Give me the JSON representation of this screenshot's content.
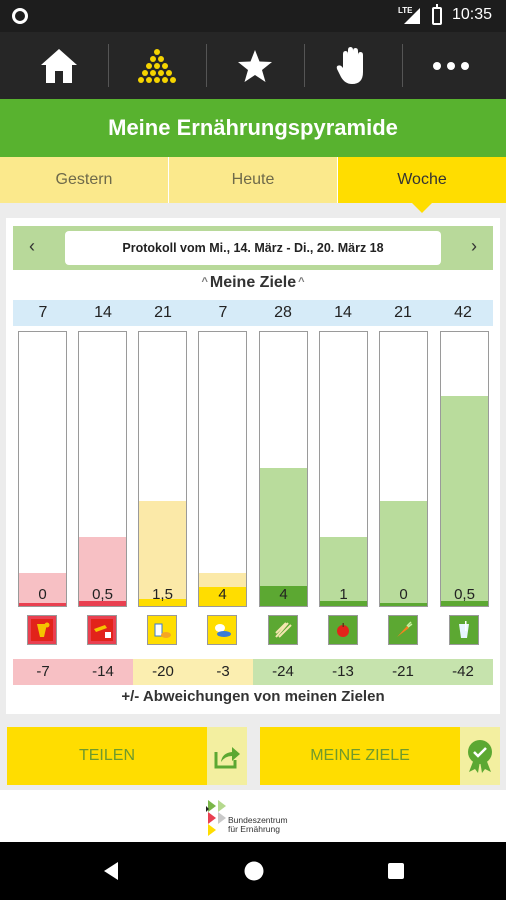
{
  "status_bar": {
    "network": "LTE",
    "time": "10:35"
  },
  "nav": {
    "items": [
      "home-icon",
      "pyramid-icon",
      "star-icon",
      "hand-icon",
      "more-icon"
    ]
  },
  "title": "Meine Ernährungspyramide",
  "tabs": [
    {
      "label": "Gestern",
      "active": false
    },
    {
      "label": "Heute",
      "active": false
    },
    {
      "label": "Woche",
      "active": true
    }
  ],
  "protocol": {
    "text": "Protokoll vom Mi., 14. März - Di., 20. März 18"
  },
  "goals": {
    "heading": "Meine Ziele"
  },
  "chart_data": {
    "type": "bar",
    "categories": [
      "Getränke rot",
      "Fette/Öle",
      "Milchprodukte",
      "Fleisch/Fisch/Eier",
      "Getreide",
      "Obst",
      "Gemüse",
      "Getränke"
    ],
    "targets": [
      7,
      14,
      21,
      7,
      28,
      14,
      21,
      42
    ],
    "actual_labels": [
      "0",
      "0,5",
      "1,5",
      "4",
      "4",
      "1",
      "0",
      "0,5"
    ],
    "actual": [
      0,
      0.5,
      1.5,
      4,
      4,
      1,
      0,
      0.5
    ],
    "deviations": [
      "-7",
      "-14",
      "-20",
      "-3",
      "-24",
      "-13",
      "-21",
      "-42"
    ],
    "target_fill_fraction": [
      0.12,
      0.25,
      0.38,
      0.12,
      0.5,
      0.25,
      0.38,
      0.76
    ],
    "fill_colors": [
      "#f7c0c4",
      "#f7c0c4",
      "#fbe9a8",
      "#fbe9a8",
      "#b9dc9c",
      "#b9dc9c",
      "#b9dc9c",
      "#b9dc9c"
    ],
    "base_colors": [
      "#e94050",
      "#e94050",
      "#ffdd00",
      "#ffdd00",
      "#5ca832",
      "#5ca832",
      "#5ca832",
      "#5ca832"
    ],
    "deviation_bg": [
      "#f7c0c4",
      "#f7c0c4",
      "#fbeeb0",
      "#fbeeb0",
      "#c6e3ad",
      "#c6e3ad",
      "#c6e3ad",
      "#c6e3ad"
    ],
    "icons": [
      "drink-sweets-icon",
      "oil-icon",
      "dairy-icon",
      "meat-fish-icon",
      "grain-icon",
      "apple-icon",
      "carrot-icon",
      "water-glass-icon"
    ]
  },
  "deviation_caption": "+/- Abweichungen von meinen Zielen",
  "actions": {
    "share_label": "TEILEN",
    "goals_label": "MEINE ZIELE",
    "share_icon": "share-icon",
    "goals_icon": "award-badge-icon"
  },
  "footer": {
    "logo_line1": "Bundeszentrum",
    "logo_line2": "für Ernährung"
  },
  "colors": {
    "accent_green": "#58b22f",
    "accent_yellow": "#ffdd00",
    "nav_dark": "#262626"
  }
}
